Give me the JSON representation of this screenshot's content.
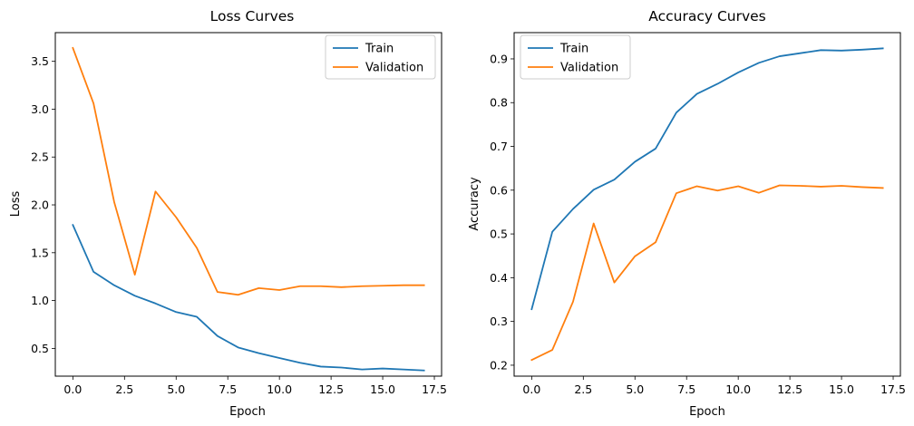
{
  "chart_data": [
    {
      "type": "line",
      "title": "Loss Curves",
      "xlabel": "Epoch",
      "ylabel": "Loss",
      "xlim": [
        -0.85,
        17.85
      ],
      "ylim": [
        0.21,
        3.8
      ],
      "xticks": [
        0.0,
        2.5,
        5.0,
        7.5,
        10.0,
        12.5,
        15.0,
        17.5
      ],
      "xtick_labels": [
        "0.0",
        "2.5",
        "5.0",
        "7.5",
        "10.0",
        "12.5",
        "15.0",
        "17.5"
      ],
      "yticks": [
        0.5,
        1.0,
        1.5,
        2.0,
        2.5,
        3.0,
        3.5
      ],
      "ytick_labels": [
        "0.5",
        "1.0",
        "1.5",
        "2.0",
        "2.5",
        "3.0",
        "3.5"
      ],
      "grid": false,
      "legend_position": "top-right",
      "x": [
        0,
        1,
        2,
        3,
        4,
        5,
        6,
        7,
        8,
        9,
        10,
        11,
        12,
        13,
        14,
        15,
        16,
        17
      ],
      "series": [
        {
          "name": "Train",
          "color": "#1f77b4",
          "values": [
            1.79,
            1.3,
            1.16,
            1.05,
            0.97,
            0.88,
            0.83,
            0.63,
            0.51,
            0.45,
            0.4,
            0.35,
            0.31,
            0.3,
            0.28,
            0.29,
            0.28,
            0.27
          ]
        },
        {
          "name": "Validation",
          "color": "#ff7f0e",
          "values": [
            3.64,
            3.06,
            2.03,
            1.27,
            2.14,
            1.87,
            1.55,
            1.09,
            1.06,
            1.13,
            1.11,
            1.15,
            1.15,
            1.14,
            1.15,
            1.155,
            1.16,
            1.16
          ]
        }
      ]
    },
    {
      "type": "line",
      "title": "Accuracy Curves",
      "xlabel": "Epoch",
      "ylabel": "Accuracy",
      "xlim": [
        -0.85,
        17.85
      ],
      "ylim": [
        0.175,
        0.96
      ],
      "xticks": [
        0.0,
        2.5,
        5.0,
        7.5,
        10.0,
        12.5,
        15.0,
        17.5
      ],
      "xtick_labels": [
        "0.0",
        "2.5",
        "5.0",
        "7.5",
        "10.0",
        "12.5",
        "15.0",
        "17.5"
      ],
      "yticks": [
        0.2,
        0.3,
        0.4,
        0.5,
        0.6,
        0.7,
        0.8,
        0.9
      ],
      "ytick_labels": [
        "0.2",
        "0.3",
        "0.4",
        "0.5",
        "0.6",
        "0.7",
        "0.8",
        "0.9"
      ],
      "grid": false,
      "legend_position": "top-left",
      "x": [
        0,
        1,
        2,
        3,
        4,
        5,
        6,
        7,
        8,
        9,
        10,
        11,
        12,
        13,
        14,
        15,
        16,
        17
      ],
      "series": [
        {
          "name": "Train",
          "color": "#1f77b4",
          "values": [
            0.328,
            0.505,
            0.557,
            0.601,
            0.624,
            0.665,
            0.695,
            0.777,
            0.82,
            0.843,
            0.869,
            0.891,
            0.906,
            0.913,
            0.92,
            0.919,
            0.921,
            0.924
          ]
        },
        {
          "name": "Validation",
          "color": "#ff7f0e",
          "values": [
            0.212,
            0.235,
            0.345,
            0.524,
            0.389,
            0.449,
            0.481,
            0.593,
            0.609,
            0.599,
            0.609,
            0.594,
            0.611,
            0.61,
            0.608,
            0.61,
            0.607,
            0.605
          ]
        }
      ]
    }
  ]
}
